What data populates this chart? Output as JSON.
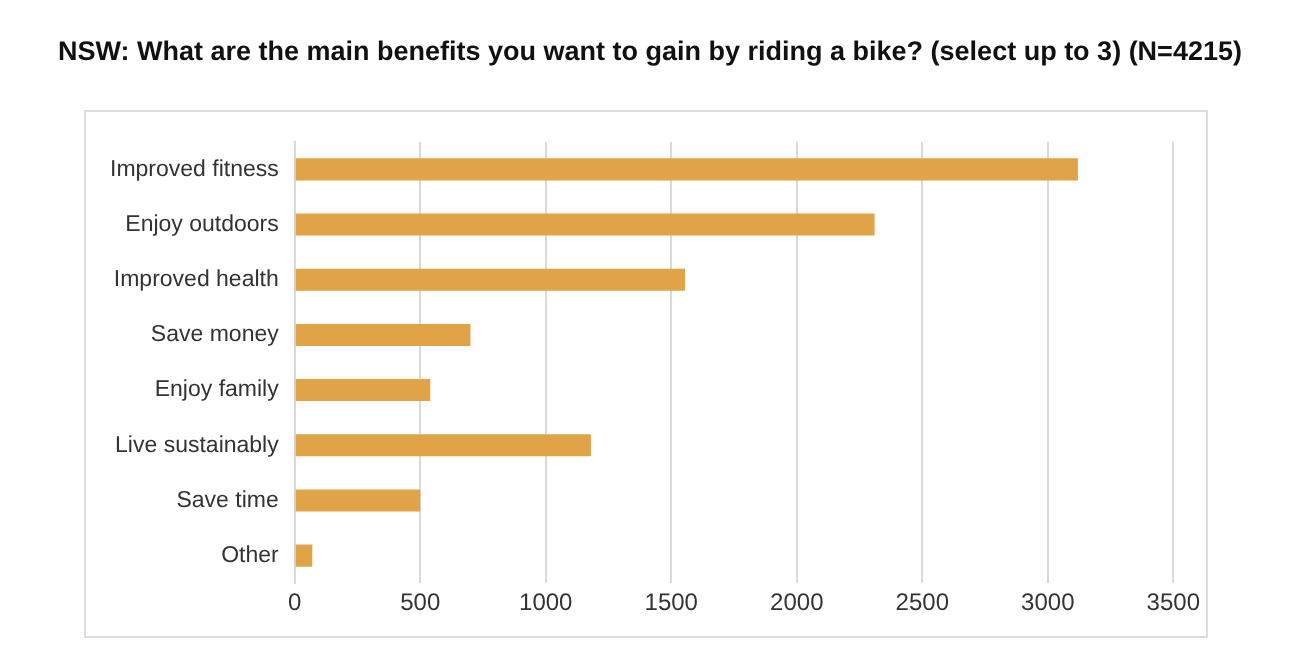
{
  "chart_data": {
    "type": "bar",
    "orientation": "horizontal",
    "title": "NSW:  What are the main benefits you want to gain by riding a bike? (select up to 3) (N=4215)",
    "categories": [
      "Improved fitness",
      "Enjoy outdoors",
      "Improved health",
      "Save money",
      "Enjoy family",
      "Live sustainably",
      "Save time",
      "Other"
    ],
    "values": [
      3120,
      2310,
      1555,
      700,
      540,
      1180,
      500,
      70
    ],
    "color": "#e0a347",
    "xlim": [
      0,
      3500
    ],
    "xticks": [
      0,
      500,
      1000,
      1500,
      2000,
      2500,
      3000,
      3500
    ],
    "grid": "x",
    "legend": false
  }
}
